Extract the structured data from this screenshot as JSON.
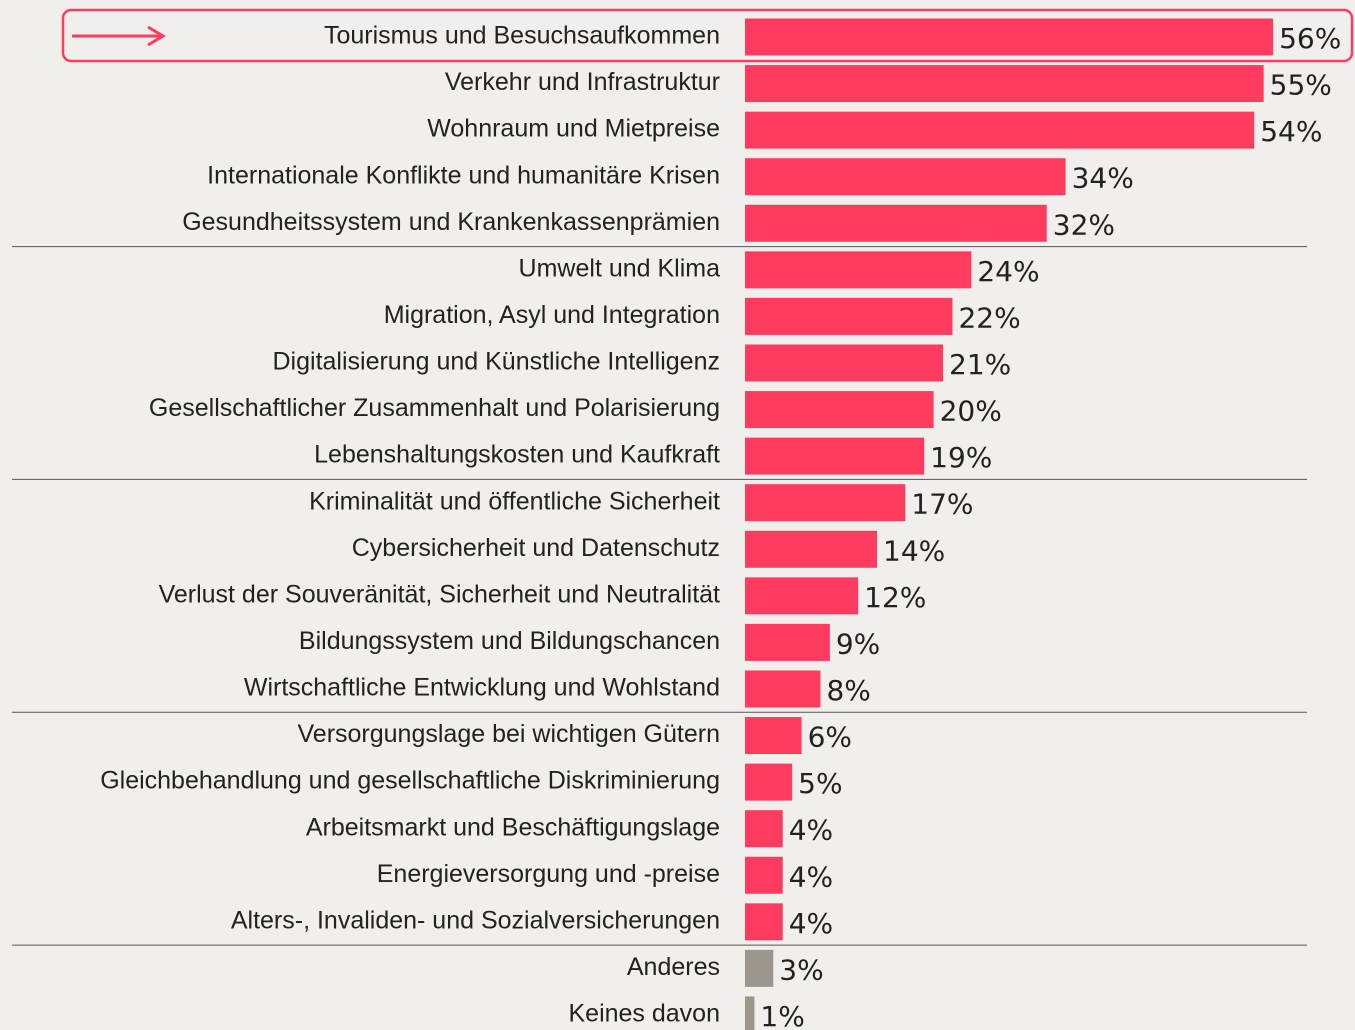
{
  "chart_data": {
    "type": "bar",
    "orientation": "horizontal",
    "categories": [
      "Tourismus und Besuchsaufkommen",
      "Verkehr und Infrastruktur",
      "Wohnraum und Mietpreise",
      "Internationale Konflikte und humanitäre Krisen",
      "Gesundheitssystem und Krankenkassenprämien",
      "Umwelt und Klima",
      "Migration, Asyl und Integration",
      "Digitalisierung und Künstliche Intelligenz",
      "Gesellschaftlicher Zusammenhalt und Polarisierung",
      "Lebenshaltungskosten und Kaufkraft",
      "Kriminalität und öffentliche Sicherheit",
      "Cybersicherheit und Datenschutz",
      "Verlust der Souveränität, Sicherheit und Neutralität",
      "Bildungssystem und Bildungschancen",
      "Wirtschaftliche Entwicklung und Wohlstand",
      "Versorgungslage bei wichtigen Gütern",
      "Gleichbehandlung und gesellschaftliche Diskriminierung",
      "Arbeitsmarkt und Beschäftigungslage",
      "Energieversorgung und -preise",
      "Alters-, Invaliden- und Sozialversicherungen",
      "Anderes",
      "Keines davon"
    ],
    "values": [
      56,
      55,
      54,
      34,
      32,
      24,
      22,
      21,
      20,
      19,
      17,
      14,
      12,
      9,
      8,
      6,
      5,
      4,
      4,
      4,
      3,
      1
    ],
    "value_labels": [
      "56%",
      "55%",
      "54%",
      "34%",
      "32%",
      "24%",
      "22%",
      "21%",
      "20%",
      "19%",
      "17%",
      "14%",
      "12%",
      "9%",
      "8%",
      "6%",
      "5%",
      "4%",
      "4%",
      "4%",
      "3%",
      "1%"
    ],
    "colors": [
      "#ff3b5f",
      "#ff3b5f",
      "#ff3b5f",
      "#ff3b5f",
      "#ff3b5f",
      "#ff3b5f",
      "#ff3b5f",
      "#ff3b5f",
      "#ff3b5f",
      "#ff3b5f",
      "#ff3b5f",
      "#ff3b5f",
      "#ff3b5f",
      "#ff3b5f",
      "#ff3b5f",
      "#ff3b5f",
      "#ff3b5f",
      "#ff3b5f",
      "#ff3b5f",
      "#ff3b5f",
      "#9b978d",
      "#9b978d"
    ]
  }
}
